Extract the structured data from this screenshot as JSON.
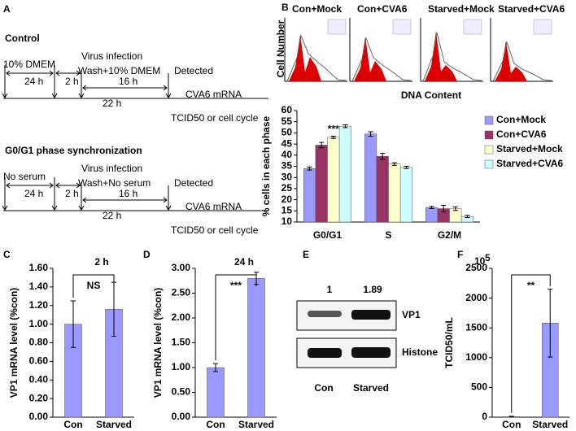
{
  "panel_labels": [
    "A",
    "B",
    "C",
    "D",
    "E",
    "F"
  ],
  "timelines": [
    {
      "title": "Control",
      "medium": "10% DMEM",
      "period1": "24 h",
      "infection": "Virus infection",
      "period2": "2 h",
      "wash": "Wash+10% DMEM",
      "period3": "16 h",
      "detected": "Detected",
      "readout1": "CVA6 mRNA",
      "period4": "22 h",
      "readout2": "TCID50 or cell cycle"
    },
    {
      "title": "G0/G1 phase synchronization",
      "medium": "No serum",
      "period1": "24 h",
      "infection": "Virus infection",
      "period2": "2 h",
      "wash": "Wash+No serum",
      "period3": "16 h",
      "detected": "Detected",
      "readout1": "CVA6 mRNA",
      "period4": "22 h",
      "readout2": "TCID50 or cell cycle"
    }
  ],
  "flow_cytometry": {
    "conditions": [
      "Con+Mock",
      "Con+CVA6",
      "Starved+Mock",
      "Starved+CVA6"
    ],
    "y_label": "Cell Number",
    "x_label": "DNA Content"
  },
  "western_blot": {
    "ratios": [
      1,
      1.89
    ],
    "bands": [
      "VP1",
      "Histone"
    ],
    "lanes": [
      "Con",
      "Starved"
    ]
  },
  "chart_data": [
    {
      "type": "bar",
      "y_label": "% cells in each phase",
      "categories": [
        "G0/G1",
        "S",
        "G2/M"
      ],
      "series": [
        {
          "name": "Con+Mock",
          "color": "#9999ff",
          "values": [
            34,
            49.5,
            16.5
          ],
          "errors": [
            0.7,
            1,
            0.5
          ]
        },
        {
          "name": "Con+CVA6",
          "color": "#993366",
          "values": [
            44.5,
            39.5,
            16
          ],
          "errors": [
            1.2,
            1.3,
            1.5
          ]
        },
        {
          "name": "Starved+Mock",
          "color": "#ffffcc",
          "values": [
            48,
            36,
            16
          ],
          "errors": [
            0.5,
            0.6,
            0.8
          ]
        },
        {
          "name": "Starved+CVA6",
          "color": "#ccffff",
          "values": [
            53,
            34.5,
            12.5
          ],
          "errors": [
            0.6,
            0.5,
            0.5
          ]
        }
      ],
      "ylim": [
        10,
        60
      ],
      "yticks": [
        10,
        15,
        20,
        25,
        30,
        35,
        40,
        45,
        50,
        55,
        60
      ],
      "annotation": "***",
      "legend": "right"
    },
    {
      "type": "bar",
      "title": "2 h",
      "y_label": "VP1 mRNA level (%con)",
      "categories": [
        "Con",
        "Starved"
      ],
      "series": [
        {
          "color": "#9999ff",
          "values": [
            1.0,
            1.16
          ],
          "errors": [
            0.25,
            0.29
          ]
        }
      ],
      "ylim": [
        0,
        1.6
      ],
      "yticks": [
        {
          "value": 0,
          "label": "0.00"
        },
        {
          "value": 0.2,
          "label": "0.20"
        },
        {
          "value": 0.4,
          "label": "0.40"
        },
        {
          "value": 0.6,
          "label": "0.60"
        },
        {
          "value": 0.8,
          "label": "0.80"
        },
        {
          "value": 1,
          "label": "1.00"
        },
        {
          "value": 1.2,
          "label": "1.20"
        },
        {
          "value": 1.4,
          "label": "1.40"
        },
        {
          "value": 1.6,
          "label": "1.60"
        }
      ],
      "annotation": "NS"
    },
    {
      "type": "bar",
      "title": "24 h",
      "y_label": "VP1 mRNA level (%con)",
      "categories": [
        "Con",
        "Starved"
      ],
      "series": [
        {
          "color": "#9999ff",
          "values": [
            1.0,
            2.8
          ],
          "errors": [
            0.08,
            0.12
          ]
        }
      ],
      "ylim": [
        0,
        3
      ],
      "yticks": [
        {
          "value": 0,
          "label": "0.00"
        },
        {
          "value": 0.5,
          "label": "0.50"
        },
        {
          "value": 1,
          "label": "1.00"
        },
        {
          "value": 1.5,
          "label": "1.50"
        },
        {
          "value": 2,
          "label": "2.00"
        },
        {
          "value": 2.5,
          "label": "2.50"
        },
        {
          "value": 3,
          "label": "3.00"
        }
      ],
      "annotation": "***"
    },
    {
      "type": "bar",
      "y_label": "TCID50/mL",
      "y_multiplier": "10",
      "y_multiplier_exponent": "5",
      "categories": [
        "Con",
        "Starved"
      ],
      "series": [
        {
          "color": "#9999ff",
          "values": [
            10,
            1580
          ],
          "errors": [
            5,
            570
          ]
        }
      ],
      "ylim": [
        0,
        2500
      ],
      "yticks": [
        0,
        500,
        1000,
        1500,
        2000,
        2500
      ],
      "annotation": "**"
    }
  ]
}
